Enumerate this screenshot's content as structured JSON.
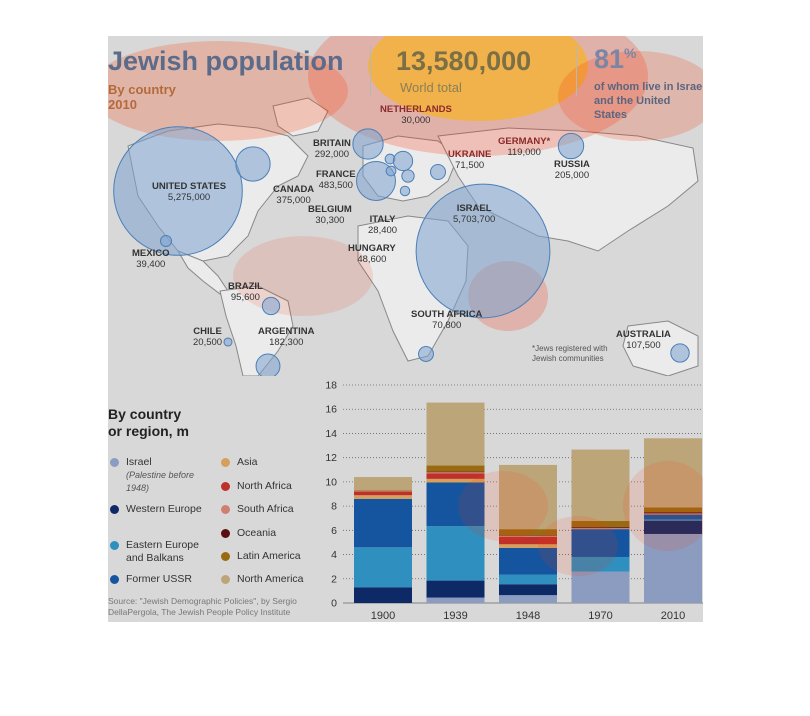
{
  "header": {
    "title": "Jewish population",
    "subtitle_line1": "By country",
    "subtitle_line2": "2010",
    "world_total": "13,580,000",
    "world_total_label": "World total",
    "share": "81",
    "share_suffix": "%",
    "share_label": "of whom live in Israel and the United States"
  },
  "map": {
    "countries": [
      {
        "name": "UNITED STATES",
        "value": "5,275,000"
      },
      {
        "name": "CANADA",
        "value": "375,000"
      },
      {
        "name": "MEXICO",
        "value": "39,400"
      },
      {
        "name": "BRAZIL",
        "value": "95,600"
      },
      {
        "name": "ARGENTINA",
        "value": "182,300"
      },
      {
        "name": "CHILE",
        "value": "20,500"
      },
      {
        "name": "BRITAIN",
        "value": "292,000"
      },
      {
        "name": "FRANCE",
        "value": "483,500"
      },
      {
        "name": "NETHERLANDS",
        "value": "30,000"
      },
      {
        "name": "BELGIUM",
        "value": "30,300"
      },
      {
        "name": "ITALY",
        "value": "28,400"
      },
      {
        "name": "HUNGARY",
        "value": "48,600"
      },
      {
        "name": "GERMANY*",
        "value": "119,000"
      },
      {
        "name": "UKRAINE",
        "value": "71,500"
      },
      {
        "name": "RUSSIA",
        "value": "205,000"
      },
      {
        "name": "ISRAEL",
        "value": "5,703,700"
      },
      {
        "name": "SOUTH AFRICA",
        "value": "70,800"
      },
      {
        "name": "AUSTRALIA",
        "value": "107,500"
      }
    ],
    "footnote": "*Jews registered with Jewish communities"
  },
  "legend": {
    "title": "By country or region, m",
    "items": [
      {
        "label": "Israel",
        "note": "(Palestine before 1948)",
        "color": "#8c9cc0"
      },
      {
        "label": "Western Europe",
        "color": "#0e2a66"
      },
      {
        "label": "Eastern Europe and Balkans",
        "color": "#2f8fbf"
      },
      {
        "label": "Former USSR",
        "color": "#1555a0"
      },
      {
        "label": "Asia",
        "color": "#d6a05a"
      },
      {
        "label": "North Africa",
        "color": "#c0302a"
      },
      {
        "label": "South Africa",
        "color": "#d08070"
      },
      {
        "label": "Oceania",
        "color": "#5a1010"
      },
      {
        "label": "Latin America",
        "color": "#9a6a10"
      },
      {
        "label": "North America",
        "color": "#bda57a"
      }
    ]
  },
  "source": "Source: \"Jewish Demographic Policies\", by Sergio DellaPergola, The Jewish People Policy Institute",
  "chart_data": {
    "type": "bar",
    "stacked": true,
    "categories": [
      "1900",
      "1939",
      "1948",
      "1970",
      "2010"
    ],
    "ylim": [
      0,
      18
    ],
    "yticks": [
      0,
      2,
      4,
      6,
      8,
      10,
      12,
      14,
      16,
      18
    ],
    "title": "By country or region, m",
    "grid": true,
    "series": [
      {
        "name": "Israel",
        "color": "#8c9cc0",
        "values": [
          0.0,
          0.45,
          0.65,
          2.6,
          5.7
        ]
      },
      {
        "name": "Western Europe",
        "color": "#0e2a66",
        "values": [
          1.3,
          1.4,
          0.9,
          0.0,
          1.1
        ]
      },
      {
        "name": "Eastern Europe and Balkans",
        "color": "#2f8fbf",
        "values": [
          3.3,
          4.5,
          0.8,
          1.2,
          0.1
        ]
      },
      {
        "name": "Former USSR",
        "color": "#1555a0",
        "values": [
          4.0,
          3.6,
          2.2,
          2.3,
          0.4
        ]
      },
      {
        "name": "Asia",
        "color": "#d6a05a",
        "values": [
          0.3,
          0.3,
          0.3,
          0.0,
          0.0
        ]
      },
      {
        "name": "North Africa",
        "color": "#c0302a",
        "values": [
          0.3,
          0.45,
          0.6,
          0.0,
          0.0
        ]
      },
      {
        "name": "South Africa",
        "color": "#d08070",
        "values": [
          0.05,
          0.1,
          0.1,
          0.1,
          0.1
        ]
      },
      {
        "name": "Oceania",
        "color": "#5a1010",
        "values": [
          0.0,
          0.05,
          0.05,
          0.07,
          0.1
        ]
      },
      {
        "name": "Latin America",
        "color": "#9a6a10",
        "values": [
          0.05,
          0.5,
          0.5,
          0.5,
          0.4
        ]
      },
      {
        "name": "North America",
        "color": "#bda57a",
        "values": [
          1.1,
          5.2,
          5.3,
          5.9,
          5.7
        ]
      }
    ]
  }
}
